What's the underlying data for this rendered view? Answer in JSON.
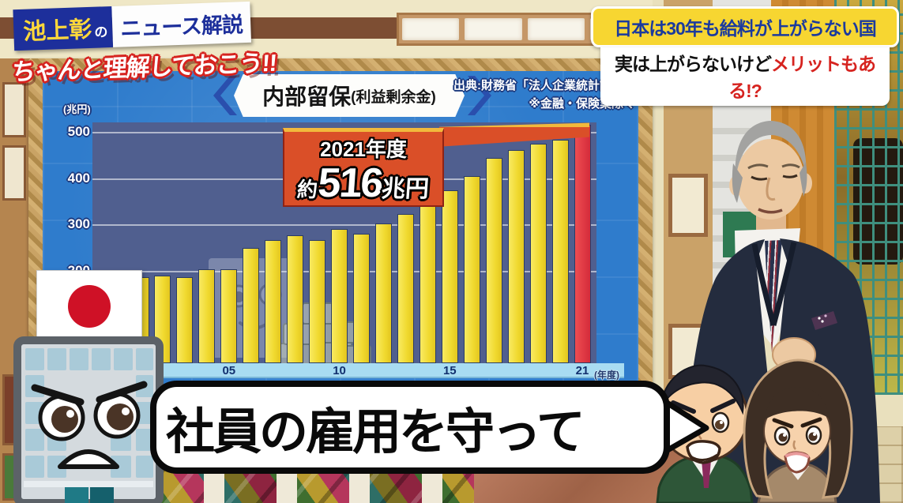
{
  "program_banner": {
    "title_main": "池上彰",
    "title_particle": "の",
    "title_sub": "ニュース解説",
    "tagline": "ちゃんと理解しておこう!!"
  },
  "topic_banner": {
    "line1": "日本は30年も給料が上がらない国",
    "line2_black": "実は上がらないけど",
    "line2_red": "メリットもある!?"
  },
  "board": {
    "title_main": "内部留保",
    "title_sub": "(利益剰余金)",
    "source_line1": "出典:財務省「法人企業統計調査」",
    "source_line2": "※金融・保険業除く",
    "y_unit_label": "(兆円)",
    "x_unit_label": "(年度)",
    "callout_year": "2021年度",
    "callout_approx": "約",
    "callout_value": "516",
    "callout_unit": "兆円"
  },
  "speech_bubble": {
    "text": "社員の雇用を守って"
  },
  "mascots": {
    "flag": "japan-flag",
    "building": "angry-building-mascot",
    "watermark": "smiling-building-and-money-stacks",
    "man": "angry-man-character",
    "woman": "angry-woman-character",
    "presenter": "news-presenter"
  },
  "colors": {
    "bar": "#f2dd3d",
    "bar_highlight": "#e23a44",
    "board_blue": "#2f7ccc",
    "plot_bg": "#505f8f",
    "axis_band": "#a8dcf2",
    "callout_bg": "#da4f28",
    "banner_navy": "#1d2f9b",
    "banner_yellow": "#f7d631",
    "accent_red": "#d6231f"
  },
  "chart_data": {
    "type": "bar",
    "title": "内部留保(利益剰余金)",
    "ylabel": "兆円",
    "xlabel": "年度",
    "years": [
      2001,
      2002,
      2003,
      2004,
      2005,
      2006,
      2007,
      2008,
      2009,
      2010,
      2011,
      2012,
      2013,
      2014,
      2015,
      2016,
      2017,
      2018,
      2019,
      2020,
      2021
    ],
    "values": [
      186,
      190,
      187,
      204,
      203,
      250,
      266,
      277,
      266,
      291,
      280,
      302,
      323,
      349,
      374,
      405,
      444,
      461,
      475,
      484,
      516
    ],
    "highlight_year": 2021,
    "highlight_label": "2021年度 約516兆円",
    "y_ticks": [
      200,
      300,
      400,
      500
    ],
    "x_tick_years": [
      2005,
      2010,
      2015,
      2021
    ],
    "x_tick_labels": [
      "05",
      "10",
      "15",
      "21"
    ],
    "ylim": [
      0,
      520
    ],
    "grid": true,
    "legend": null,
    "source": "出典:財務省「法人企業統計調査」 ※金融・保険業除く"
  }
}
